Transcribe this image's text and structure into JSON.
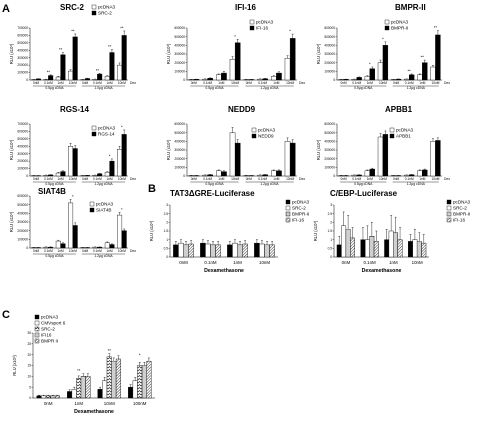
{
  "panels": [
    {
      "id": "A",
      "label": "A"
    },
    {
      "id": "B",
      "label": "B"
    },
    {
      "id": "C",
      "label": "C"
    }
  ],
  "patterns": {
    "white": "#ffffff",
    "black": "#000000"
  },
  "chart_data": [
    {
      "panel": "A",
      "type": "bar",
      "title": "SRC-2",
      "ylabel": "RLU (x10³)",
      "ylim": [
        0,
        700000
      ],
      "yticks": [
        0,
        100000,
        200000,
        300000,
        400000,
        500000,
        600000,
        700000
      ],
      "categories": [
        "0nM",
        "0.1nM",
        "1nM",
        "10nM",
        "0nM",
        "0.1nM",
        "1nM",
        "10nM"
      ],
      "groups": [
        "0.5μg cDNA",
        "1.0μg cDNA"
      ],
      "dex_label": "Dex",
      "series": [
        {
          "name": "pcDNA3",
          "pattern": "white",
          "values": [
            5000,
            8000,
            40000,
            120000,
            5000,
            10000,
            50000,
            200000
          ],
          "errors": [
            2000,
            3000,
            10000,
            20000,
            2000,
            3000,
            10000,
            30000
          ]
        },
        {
          "name": "SRC-2",
          "pattern": "black",
          "values": [
            15000,
            60000,
            340000,
            580000,
            20000,
            80000,
            370000,
            600000
          ],
          "errors": [
            3000,
            10000,
            30000,
            40000,
            5000,
            10000,
            40000,
            60000
          ]
        }
      ],
      "stars": [
        "",
        "**",
        "**",
        "**",
        "",
        "**",
        "**",
        "**"
      ]
    },
    {
      "panel": "A",
      "type": "bar",
      "title": "IFI-16",
      "ylabel": "RLU (x10³)",
      "ylim": [
        0,
        600000
      ],
      "yticks": [
        0,
        100000,
        200000,
        300000,
        400000,
        500000,
        600000
      ],
      "categories": [
        "0nM",
        "0.1nM",
        "1nM",
        "10nM",
        "0nM",
        "0.1nM",
        "1nM",
        "10nM"
      ],
      "groups": [
        "0.5μg cDNA",
        "1.2μg cDNA"
      ],
      "dex_label": "Dex",
      "series": [
        {
          "name": "pcDNA3",
          "pattern": "white",
          "values": [
            5000,
            10000,
            60000,
            240000,
            5000,
            10000,
            40000,
            250000
          ],
          "errors": [
            2000,
            3000,
            10000,
            30000,
            2000,
            3000,
            10000,
            30000
          ]
        },
        {
          "name": "IFI-16",
          "pattern": "black",
          "values": [
            8000,
            20000,
            80000,
            430000,
            6000,
            15000,
            80000,
            480000
          ],
          "errors": [
            2000,
            5000,
            20000,
            40000,
            2000,
            4000,
            15000,
            50000
          ]
        }
      ],
      "stars": [
        "",
        "",
        "",
        "*",
        "",
        "",
        "",
        "*"
      ]
    },
    {
      "panel": "A",
      "type": "bar",
      "title": "BMPR-II",
      "ylabel": "RLU (x10³)",
      "ylim": [
        0,
        600000
      ],
      "yticks": [
        0,
        100000,
        200000,
        300000,
        400000,
        500000,
        600000
      ],
      "categories": [
        "0nM",
        "0.1nM",
        "1nM",
        "10nM",
        "0nM",
        "0.1nM",
        "1nM",
        "10nM"
      ],
      "groups": [
        "0.5μg cDNA",
        "1.2μg cDNA"
      ],
      "dex_label": "Dex",
      "series": [
        {
          "name": "pcDNA3",
          "pattern": "white",
          "values": [
            5000,
            8000,
            40000,
            200000,
            5000,
            10000,
            60000,
            150000
          ],
          "errors": [
            2000,
            3000,
            10000,
            30000,
            2000,
            3000,
            10000,
            20000
          ]
        },
        {
          "name": "BMPR-II",
          "pattern": "black",
          "values": [
            8000,
            30000,
            130000,
            400000,
            10000,
            60000,
            200000,
            520000
          ],
          "errors": [
            2000,
            5000,
            20000,
            40000,
            3000,
            10000,
            30000,
            50000
          ]
        }
      ],
      "stars": [
        "",
        "",
        "*",
        "*",
        "",
        "**",
        "**",
        "**"
      ]
    },
    {
      "panel": "A",
      "type": "bar",
      "title": "RGS-14",
      "ylabel": "RLU (x10³)",
      "ylim": [
        0,
        700000
      ],
      "yticks": [
        0,
        100000,
        200000,
        300000,
        400000,
        500000,
        600000,
        700000
      ],
      "categories": [
        "0nM",
        "0.1nM",
        "1nM",
        "10nM",
        "0nM",
        "0.1nM",
        "1nM",
        "10nM"
      ],
      "groups": [
        "0.5μg cDNA",
        "1.2μg cDNA"
      ],
      "dex_label": "Dex",
      "series": [
        {
          "name": "pcDNA3",
          "pattern": "white",
          "values": [
            5000,
            10000,
            40000,
            400000,
            5000,
            10000,
            50000,
            360000
          ],
          "errors": [
            2000,
            3000,
            10000,
            40000,
            2000,
            3000,
            10000,
            40000
          ]
        },
        {
          "name": "RGS-14",
          "pattern": "black",
          "values": [
            5000,
            15000,
            60000,
            370000,
            8000,
            30000,
            200000,
            560000
          ],
          "errors": [
            2000,
            3000,
            10000,
            40000,
            2000,
            5000,
            30000,
            60000
          ]
        }
      ],
      "stars": [
        "",
        "",
        "",
        "",
        "",
        "",
        "*",
        "*"
      ]
    },
    {
      "panel": "A",
      "type": "bar",
      "title": "NEDD9",
      "ylabel": "RLU (x10³)",
      "ylim": [
        0,
        600000
      ],
      "yticks": [
        0,
        100000,
        200000,
        300000,
        400000,
        500000,
        600000
      ],
      "categories": [
        "0nM",
        "0.1nM",
        "1nM",
        "10nM",
        "0nM",
        "0.1nM",
        "1nM",
        "10nM"
      ],
      "groups": [
        "0.5μg cDNA",
        "1.2μg cDNA"
      ],
      "dex_label": "Dex",
      "series": [
        {
          "name": "pcDNA3",
          "pattern": "white",
          "values": [
            5000,
            10000,
            60000,
            500000,
            5000,
            10000,
            60000,
            400000
          ],
          "errors": [
            2000,
            3000,
            10000,
            60000,
            2000,
            3000,
            10000,
            40000
          ]
        },
        {
          "name": "NEDD9",
          "pattern": "black",
          "values": [
            5000,
            15000,
            50000,
            380000,
            5000,
            15000,
            60000,
            380000
          ],
          "errors": [
            2000,
            3000,
            10000,
            40000,
            2000,
            3000,
            10000,
            40000
          ]
        }
      ],
      "stars": [
        "",
        "",
        "",
        "",
        "",
        "",
        "",
        ""
      ]
    },
    {
      "panel": "A",
      "type": "bar",
      "title": "APBB1",
      "ylabel": "RLU (x10³)",
      "ylim": [
        0,
        600000
      ],
      "yticks": [
        0,
        100000,
        200000,
        300000,
        400000,
        500000,
        600000
      ],
      "categories": [
        "0nM",
        "0.1nM",
        "1nM",
        "10nM",
        "0nM",
        "0.1nM",
        "1nM",
        "10nM"
      ],
      "groups": [
        "0.5μg cDNA",
        "1.2μg cDNA"
      ],
      "dex_label": "Dex",
      "series": [
        {
          "name": "pcDNA3",
          "pattern": "white",
          "values": [
            5000,
            10000,
            60000,
            450000,
            5000,
            10000,
            60000,
            400000
          ],
          "errors": [
            2000,
            3000,
            10000,
            40000,
            2000,
            3000,
            10000,
            30000
          ]
        },
        {
          "name": "APBB1",
          "pattern": "black",
          "values": [
            5000,
            12000,
            80000,
            480000,
            5000,
            15000,
            70000,
            410000
          ],
          "errors": [
            2000,
            3000,
            10000,
            40000,
            2000,
            3000,
            10000,
            30000
          ]
        }
      ],
      "stars": [
        "",
        "",
        "",
        "",
        "",
        "",
        "",
        ""
      ]
    },
    {
      "panel": "A",
      "type": "bar",
      "title": "SIAT4B",
      "ylabel": "RLU (x10³)",
      "ylim": [
        0,
        600000
      ],
      "yticks": [
        0,
        100000,
        200000,
        300000,
        400000,
        500000,
        600000
      ],
      "categories": [
        "0nM",
        "0.1nM",
        "1nM",
        "10nM",
        "0nM",
        "0.1nM",
        "1nM",
        "10nM"
      ],
      "groups": [
        "0.5μg cDNA",
        "1.2μg cDNA"
      ],
      "dex_label": "Dex",
      "series": [
        {
          "name": "pcDNA3",
          "pattern": "white",
          "values": [
            5000,
            10000,
            80000,
            520000,
            5000,
            10000,
            60000,
            380000
          ],
          "errors": [
            2000,
            3000,
            10000,
            40000,
            2000,
            3000,
            10000,
            30000
          ]
        },
        {
          "name": "SIAT4B",
          "pattern": "black",
          "values": [
            5000,
            10000,
            50000,
            260000,
            5000,
            10000,
            40000,
            200000
          ],
          "errors": [
            2000,
            3000,
            10000,
            30000,
            2000,
            3000,
            8000,
            20000
          ]
        }
      ],
      "stars": [
        "",
        "",
        "",
        "*",
        "",
        "",
        "",
        "*"
      ]
    },
    {
      "panel": "B",
      "type": "bar",
      "title": "TAT3ΔGRE-Luciferase",
      "ylabel": "RLU (x10³)",
      "ylim": [
        0,
        3
      ],
      "yticks": [
        0,
        0.5,
        1,
        1.5,
        2,
        2.5,
        3
      ],
      "categories": [
        "0nM",
        "0.1nM",
        "1nM",
        "10nM"
      ],
      "xlabel": "Dexamethasone",
      "series": [
        {
          "name": "pcDNA3",
          "pattern": "black",
          "values": [
            0.7,
            0.8,
            0.7,
            0.8
          ],
          "errors": [
            0.2,
            0.2,
            0.2,
            0.2
          ]
        },
        {
          "name": "SRC-2",
          "pattern": "white",
          "values": [
            0.8,
            0.75,
            0.8,
            0.75
          ],
          "errors": [
            0.2,
            0.2,
            0.2,
            0.2
          ]
        },
        {
          "name": "BMPR-II",
          "pattern": "dots",
          "values": [
            0.7,
            0.7,
            0.7,
            0.7
          ],
          "errors": [
            0.2,
            0.2,
            0.2,
            0.2
          ]
        },
        {
          "name": "IFI-16",
          "pattern": "hatch",
          "values": [
            0.75,
            0.7,
            0.75,
            0.7
          ],
          "errors": [
            0.2,
            0.2,
            0.2,
            0.2
          ]
        }
      ]
    },
    {
      "panel": "B",
      "type": "bar",
      "title": "C/EBP-Luciferase",
      "ylabel": "RLU (x10³)",
      "ylim": [
        0,
        3
      ],
      "yticks": [
        0,
        0.5,
        1,
        1.5,
        2,
        2.5,
        3
      ],
      "categories": [
        "0nM",
        "0.1nM",
        "1nM",
        "10nM"
      ],
      "xlabel": "Dexamethasone",
      "series": [
        {
          "name": "pcDNA3",
          "pattern": "black",
          "values": [
            0.7,
            1.0,
            1.0,
            0.9
          ],
          "errors": [
            0.5,
            0.7,
            0.6,
            0.4
          ]
        },
        {
          "name": "SRC-2",
          "pattern": "white",
          "values": [
            1.8,
            1.0,
            1.5,
            1.0
          ],
          "errors": [
            0.8,
            0.8,
            0.9,
            0.6
          ]
        },
        {
          "name": "BMPR-II",
          "pattern": "dots",
          "values": [
            1.6,
            1.2,
            1.4,
            0.9
          ],
          "errors": [
            0.8,
            0.8,
            0.9,
            0.5
          ]
        },
        {
          "name": "IFI-16",
          "pattern": "hatch",
          "values": [
            1.1,
            0.9,
            1.0,
            0.8
          ],
          "errors": [
            0.6,
            0.6,
            0.7,
            0.5
          ]
        }
      ]
    },
    {
      "panel": "C",
      "type": "bar",
      "title": "",
      "ylabel": "RLU (x10³)",
      "ylim": [
        0,
        30
      ],
      "yticks": [
        0,
        5,
        10,
        15,
        20,
        25,
        30
      ],
      "categories": [
        "0nM",
        "1nM",
        "10nM",
        "100nM"
      ],
      "xlabel": "Dexamethasone",
      "series": [
        {
          "name": "pcDNA3",
          "pattern": "black",
          "values": [
            1,
            3,
            4,
            5
          ],
          "errors": [
            0.3,
            0.8,
            1.0,
            1.2
          ]
        },
        {
          "name": "CMVsport 6",
          "pattern": "white",
          "values": [
            1,
            4,
            8,
            8
          ],
          "errors": [
            0.3,
            1.0,
            1.5,
            1.5
          ]
        },
        {
          "name": "SRC-2",
          "pattern": "zigzag",
          "values": [
            1,
            9,
            19,
            15
          ],
          "errors": [
            0.3,
            1.2,
            1.5,
            1.5
          ]
        },
        {
          "name": "IFI16",
          "pattern": "dots",
          "values": [
            1,
            10,
            17,
            15
          ],
          "errors": [
            0.3,
            1.2,
            1.5,
            1.5
          ]
        },
        {
          "name": "BMPR II",
          "pattern": "hatch",
          "values": [
            1,
            10,
            18,
            17
          ],
          "errors": [
            0.3,
            1.2,
            1.5,
            1.5
          ]
        }
      ],
      "stars": [
        "",
        "**",
        "**",
        "*"
      ]
    }
  ]
}
